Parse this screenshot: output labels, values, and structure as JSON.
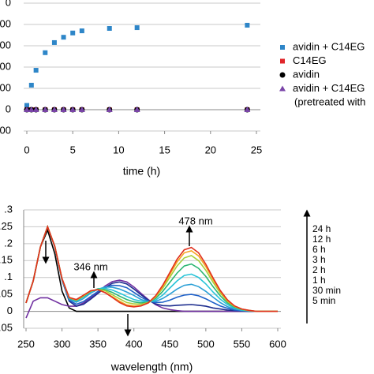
{
  "chart_data": [
    {
      "type": "scatter",
      "x_label": "time (h)",
      "x": [
        0,
        0.5,
        1,
        2,
        3,
        4,
        5,
        6,
        9,
        12,
        24
      ],
      "xlim": [
        0,
        25
      ],
      "xticks": [
        0,
        5,
        10,
        15,
        20,
        25
      ],
      "ylim": [
        -200,
        1000
      ],
      "yticks": [
        {
          "value": 1000,
          "label": "0"
        },
        {
          "value": 800,
          "label": "00"
        },
        {
          "value": 600,
          "label": "00"
        },
        {
          "value": 400,
          "label": "00"
        },
        {
          "value": 200,
          "label": "00"
        },
        0,
        {
          "value": -200,
          "label": "00"
        }
      ],
      "grid": true,
      "legend": "right",
      "legend_note": "(pretreated with",
      "series": [
        {
          "name": "avidin + C14EG",
          "color": "#2e86c8",
          "marker": "square",
          "values": [
            40,
            230,
            370,
            535,
            630,
            680,
            720,
            740,
            763,
            770,
            793
          ]
        },
        {
          "name": "C14EG",
          "color": "#e0262a",
          "marker": "square",
          "values": [
            0,
            0,
            0,
            0,
            0,
            0,
            0,
            0,
            0,
            0,
            0
          ]
        },
        {
          "name": "avidin",
          "color": "#000000",
          "marker": "circle",
          "values": [
            0,
            0,
            0,
            0,
            0,
            0,
            0,
            0,
            0,
            0,
            0
          ]
        },
        {
          "name": "avidin + C14EG",
          "color": "#7a45a8",
          "marker": "triangle",
          "values": [
            0,
            0,
            0,
            0,
            0,
            0,
            0,
            0,
            0,
            0,
            0
          ]
        }
      ]
    },
    {
      "type": "line",
      "x_label": "wavelength (nm)",
      "annotations": [
        "346 nm",
        "478 nm"
      ],
      "x": [
        250,
        260,
        270,
        280,
        290,
        300,
        310,
        320,
        330,
        340,
        350,
        360,
        370,
        380,
        390,
        400,
        410,
        420,
        430,
        440,
        450,
        460,
        470,
        480,
        490,
        500,
        510,
        520,
        530,
        540,
        550,
        560,
        570,
        580,
        590,
        600
      ],
      "xlim": [
        250,
        600
      ],
      "xticks": [
        250,
        300,
        350,
        400,
        450,
        500,
        550,
        600
      ],
      "ylim": [
        -0.05,
        0.3
      ],
      "yticks": [
        {
          "value": 0.3,
          "label": ".3"
        },
        {
          "value": 0.25,
          "label": ".25"
        },
        {
          "value": 0.2,
          "label": ".2"
        },
        {
          "value": 0.15,
          "label": ".15"
        },
        {
          "value": 0.1,
          "label": ".1"
        },
        {
          "value": 0.05,
          "label": ".05"
        },
        0,
        {
          "value": -0.05,
          "label": ".05"
        }
      ],
      "grid": true,
      "legend": "right",
      "series": [
        {
          "color": "#000000",
          "values": [
            0.025,
            0.09,
            0.19,
            0.24,
            0.17,
            0.06,
            0.01,
            0,
            0,
            0,
            0,
            0,
            0,
            0,
            0,
            0,
            0,
            0,
            0,
            0,
            0,
            0,
            0,
            0,
            0,
            0,
            0,
            0,
            0,
            0,
            0,
            0,
            0,
            0,
            0,
            0
          ]
        },
        {
          "color": "#7030a0",
          "values": [
            -0.02,
            0.03,
            0.04,
            0.04,
            0.03,
            0.02,
            0.015,
            0.015,
            0.025,
            0.04,
            0.057,
            0.075,
            0.088,
            0.092,
            0.087,
            0.072,
            0.053,
            0.035,
            0.02,
            0.01,
            0.005,
            0.002,
            0,
            0,
            0,
            0,
            0,
            0,
            0,
            0,
            0,
            0,
            0,
            0,
            0,
            0
          ]
        },
        {
          "name": "5 min",
          "color": "#1f2f8f",
          "values": [
            0.025,
            0.09,
            0.19,
            0.25,
            0.19,
            0.092,
            0.03,
            0.015,
            0.021,
            0.036,
            0.053,
            0.07,
            0.083,
            0.087,
            0.081,
            0.066,
            0.049,
            0.033,
            0.022,
            0.017,
            0.016,
            0.018,
            0.019,
            0.02,
            0.018,
            0.015,
            0.01,
            0.007,
            0.004,
            0.002,
            0.001,
            0,
            0,
            0,
            0,
            0
          ]
        },
        {
          "name": "30 min",
          "color": "#1e60c8",
          "values": [
            0.025,
            0.09,
            0.19,
            0.25,
            0.191,
            0.093,
            0.033,
            0.021,
            0.029,
            0.044,
            0.059,
            0.07,
            0.077,
            0.076,
            0.07,
            0.056,
            0.042,
            0.031,
            0.026,
            0.027,
            0.033,
            0.042,
            0.048,
            0.05,
            0.046,
            0.037,
            0.026,
            0.016,
            0.009,
            0.004,
            0.002,
            0.001,
            0,
            0,
            0,
            0
          ]
        },
        {
          "name": "1 h",
          "color": "#2a9fd6",
          "values": [
            0.025,
            0.09,
            0.19,
            0.25,
            0.191,
            0.095,
            0.036,
            0.027,
            0.038,
            0.054,
            0.065,
            0.072,
            0.071,
            0.066,
            0.057,
            0.047,
            0.035,
            0.029,
            0.029,
            0.038,
            0.051,
            0.066,
            0.077,
            0.08,
            0.073,
            0.059,
            0.042,
            0.026,
            0.014,
            0.007,
            0.003,
            0.001,
            0,
            0,
            0,
            0
          ]
        },
        {
          "name": "2 h",
          "color": "#27c4d8",
          "values": [
            0.025,
            0.09,
            0.19,
            0.25,
            0.192,
            0.096,
            0.039,
            0.03,
            0.043,
            0.057,
            0.067,
            0.068,
            0.063,
            0.054,
            0.044,
            0.035,
            0.03,
            0.027,
            0.033,
            0.048,
            0.069,
            0.09,
            0.106,
            0.11,
            0.1,
            0.081,
            0.057,
            0.036,
            0.02,
            0.009,
            0.004,
            0.002,
            0,
            0,
            0,
            0
          ]
        },
        {
          "name": "3 h",
          "color": "#2bb673",
          "values": [
            0.025,
            0.09,
            0.19,
            0.25,
            0.192,
            0.097,
            0.039,
            0.032,
            0.044,
            0.059,
            0.066,
            0.064,
            0.056,
            0.045,
            0.035,
            0.028,
            0.025,
            0.027,
            0.038,
            0.059,
            0.086,
            0.113,
            0.134,
            0.14,
            0.127,
            0.103,
            0.073,
            0.046,
            0.025,
            0.012,
            0.005,
            0.002,
            0,
            0,
            0,
            0
          ]
        },
        {
          "name": "6 h",
          "color": "#a6cf3a",
          "values": [
            0.025,
            0.09,
            0.19,
            0.25,
            0.192,
            0.096,
            0.04,
            0.033,
            0.046,
            0.06,
            0.065,
            0.061,
            0.049,
            0.037,
            0.026,
            0.022,
            0.021,
            0.026,
            0.042,
            0.068,
            0.101,
            0.134,
            0.158,
            0.165,
            0.15,
            0.121,
            0.086,
            0.054,
            0.029,
            0.014,
            0.006,
            0.002,
            0,
            0,
            0,
            0
          ]
        },
        {
          "name": "12 h",
          "color": "#f5a623",
          "values": [
            0.025,
            0.09,
            0.19,
            0.25,
            0.192,
            0.096,
            0.04,
            0.034,
            0.047,
            0.06,
            0.064,
            0.056,
            0.043,
            0.03,
            0.019,
            0.016,
            0.017,
            0.025,
            0.043,
            0.073,
            0.109,
            0.146,
            0.173,
            0.179,
            0.164,
            0.132,
            0.094,
            0.059,
            0.032,
            0.015,
            0.007,
            0.003,
            0,
            0,
            0,
            0
          ]
        },
        {
          "name": "24 h",
          "color": "#e0301e",
          "values": [
            0.025,
            0.09,
            0.19,
            0.25,
            0.192,
            0.097,
            0.041,
            0.035,
            0.048,
            0.061,
            0.064,
            0.055,
            0.041,
            0.026,
            0.016,
            0.013,
            0.016,
            0.025,
            0.046,
            0.077,
            0.115,
            0.154,
            0.182,
            0.189,
            0.173,
            0.139,
            0.099,
            0.062,
            0.034,
            0.016,
            0.007,
            0.003,
            0,
            0,
            0,
            0
          ]
        }
      ]
    }
  ]
}
